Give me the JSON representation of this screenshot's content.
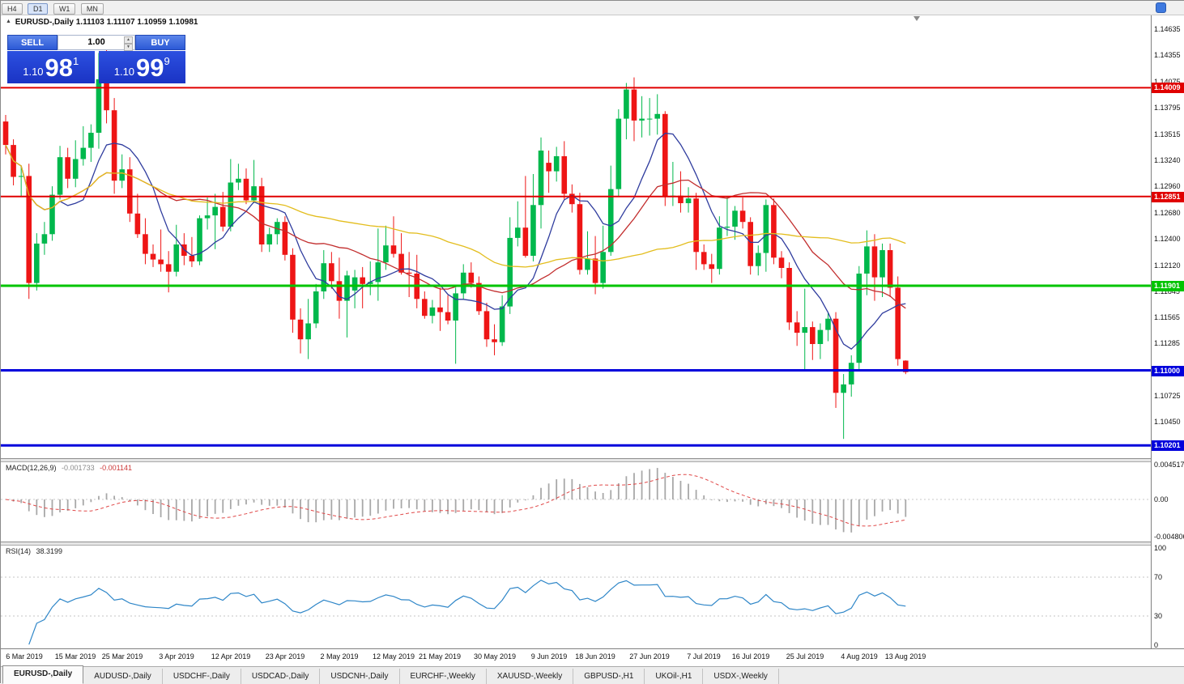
{
  "toolbar": {
    "timeframes": [
      "H4",
      "D1",
      "W1",
      "MN"
    ],
    "active": "D1"
  },
  "chart": {
    "symbol_period": "EURUSD-,Daily",
    "ohlc": "1.11103 1.11107 1.10959 1.10981",
    "collapse_icon": "▲"
  },
  "trade_panel": {
    "sell_label": "SELL",
    "buy_label": "BUY",
    "volume": "1.00",
    "bid": {
      "prefix": "1.10",
      "big": "98",
      "sup": "1"
    },
    "ask": {
      "prefix": "1.10",
      "big": "99",
      "sup": "9"
    }
  },
  "price_axis": {
    "labels": [
      "1.14635",
      "1.14355",
      "1.14075",
      "1.13795",
      "1.13515",
      "1.13240",
      "1.12960",
      "1.12680",
      "1.12400",
      "1.12120",
      "1.11845",
      "1.11565",
      "1.11285",
      "1.10725",
      "1.10450"
    ]
  },
  "levels": [
    {
      "price": 1.14009,
      "label": "1.14009",
      "color": "#e00000",
      "width": 2
    },
    {
      "price": 1.12851,
      "label": "1.12851",
      "color": "#e00000",
      "width": 2
    },
    {
      "price": 1.11901,
      "label": "1.11901",
      "color": "#00c400",
      "width": 3
    },
    {
      "price": 1.11,
      "label": "1.11000",
      "color": "#0000dc",
      "width": 3
    },
    {
      "price": 1.10201,
      "label": "1.10201",
      "color": "#0000dc",
      "width": 3
    }
  ],
  "macd": {
    "name": "MACD(12,26,9)",
    "value_main": "-0.001733",
    "value_signal": "-0.001141",
    "axis": [
      {
        "text": "0.004517",
        "value": 0.004517
      },
      {
        "text": "0.00",
        "value": 0
      },
      {
        "text": "-0.004806",
        "value": -0.004806
      }
    ]
  },
  "rsi": {
    "name": "RSI(14)",
    "value": "38.3199",
    "axis": [
      {
        "text": "100",
        "value": 100
      },
      {
        "text": "70",
        "value": 70
      },
      {
        "text": "30",
        "value": 30
      },
      {
        "text": "0",
        "value": 0
      }
    ],
    "levels": [
      70,
      30
    ]
  },
  "x_axis": {
    "labels": [
      {
        "text": "6 Mar 2019",
        "i": 2
      },
      {
        "text": "15 Mar 2019",
        "i": 9
      },
      {
        "text": "25 Mar 2019",
        "i": 15
      },
      {
        "text": "3 Apr 2019",
        "i": 22
      },
      {
        "text": "12 Apr 2019",
        "i": 29
      },
      {
        "text": "23 Apr 2019",
        "i": 36
      },
      {
        "text": "2 May 2019",
        "i": 43
      },
      {
        "text": "12 May 2019",
        "i": 50
      },
      {
        "text": "21 May 2019",
        "i": 56
      },
      {
        "text": "30 May 2019",
        "i": 63
      },
      {
        "text": "9 Jun 2019",
        "i": 70
      },
      {
        "text": "18 Jun 2019",
        "i": 76
      },
      {
        "text": "27 Jun 2019",
        "i": 83
      },
      {
        "text": "7 Jul 2019",
        "i": 90
      },
      {
        "text": "16 Jul 2019",
        "i": 96
      },
      {
        "text": "25 Jul 2019",
        "i": 103
      },
      {
        "text": "4 Aug 2019",
        "i": 110
      },
      {
        "text": "13 Aug 2019",
        "i": 116
      }
    ]
  },
  "tabs": [
    {
      "label": "EURUSD-,Daily",
      "active": true
    },
    {
      "label": "AUDUSD-,Daily",
      "active": false
    },
    {
      "label": "USDCHF-,Daily",
      "active": false
    },
    {
      "label": "USDCAD-,Daily",
      "active": false
    },
    {
      "label": "USDCNH-,Daily",
      "active": false
    },
    {
      "label": "EURCHF-,Weekly",
      "active": false
    },
    {
      "label": "XAUUSD-,Weekly",
      "active": false
    },
    {
      "label": "GBPUSD-,H1",
      "active": false
    },
    {
      "label": "UKOil-,H1",
      "active": false
    },
    {
      "label": "USDX-,Weekly",
      "active": false
    }
  ],
  "chart_data": {
    "type": "candlestick",
    "symbol": "EURUSD-",
    "timeframe": "Daily",
    "colors": {
      "up": "#00b84c",
      "down": "#ee1515",
      "ma_fast": "#2f3c9e",
      "ma_mid": "#c22e2e",
      "ma_slow": "#e3bd1d",
      "rsi": "#2e86c8",
      "macd_hist": "#a8a8a8",
      "macd_signal": "#e04848"
    },
    "moving_averages": [
      {
        "period": 8,
        "color_key": "ma_fast"
      },
      {
        "period": 20,
        "color_key": "ma_mid"
      },
      {
        "period": 50,
        "color_key": "ma_slow"
      }
    ],
    "candles": [
      [
        1.1365,
        1.1372,
        1.133,
        1.134
      ],
      [
        1.134,
        1.1346,
        1.1297,
        1.1306
      ],
      [
        1.1306,
        1.1317,
        1.1285,
        1.1307
      ],
      [
        1.1307,
        1.132,
        1.1176,
        1.1193
      ],
      [
        1.1193,
        1.1246,
        1.1185,
        1.1235
      ],
      [
        1.1235,
        1.1258,
        1.1223,
        1.1245
      ],
      [
        1.1245,
        1.1296,
        1.1238,
        1.1287
      ],
      [
        1.1287,
        1.1339,
        1.1282,
        1.1327
      ],
      [
        1.1327,
        1.1337,
        1.1294,
        1.1304
      ],
      [
        1.1304,
        1.1345,
        1.1295,
        1.1325
      ],
      [
        1.1325,
        1.136,
        1.1318,
        1.1337
      ],
      [
        1.1337,
        1.1362,
        1.1322,
        1.1353
      ],
      [
        1.1353,
        1.1438,
        1.1336,
        1.141
      ],
      [
        1.141,
        1.1442,
        1.1363,
        1.1377
      ],
      [
        1.1377,
        1.139,
        1.1288,
        1.1302
      ],
      [
        1.1302,
        1.133,
        1.1294,
        1.1314
      ],
      [
        1.1314,
        1.1327,
        1.1258,
        1.1267
      ],
      [
        1.1267,
        1.1288,
        1.1241,
        1.1245
      ],
      [
        1.1245,
        1.1262,
        1.1213,
        1.1224
      ],
      [
        1.1224,
        1.1234,
        1.121,
        1.1218
      ],
      [
        1.1218,
        1.125,
        1.1205,
        1.1213
      ],
      [
        1.1213,
        1.1227,
        1.1183,
        1.1205
      ],
      [
        1.1205,
        1.1255,
        1.12,
        1.1234
      ],
      [
        1.1234,
        1.1246,
        1.1212,
        1.1222
      ],
      [
        1.1222,
        1.1242,
        1.121,
        1.1216
      ],
      [
        1.1216,
        1.1265,
        1.1212,
        1.1262
      ],
      [
        1.1262,
        1.1284,
        1.125,
        1.1265
      ],
      [
        1.1265,
        1.1288,
        1.1229,
        1.1274
      ],
      [
        1.1274,
        1.129,
        1.1248,
        1.1253
      ],
      [
        1.1253,
        1.1325,
        1.1248,
        1.13
      ],
      [
        1.13,
        1.132,
        1.1292,
        1.1304
      ],
      [
        1.1304,
        1.1315,
        1.1277,
        1.1281
      ],
      [
        1.1281,
        1.1324,
        1.1278,
        1.1296
      ],
      [
        1.1296,
        1.1305,
        1.1226,
        1.1234
      ],
      [
        1.1234,
        1.1252,
        1.1226,
        1.1245
      ],
      [
        1.1245,
        1.1262,
        1.1234,
        1.1258
      ],
      [
        1.1258,
        1.1264,
        1.1217,
        1.1223
      ],
      [
        1.1223,
        1.123,
        1.114,
        1.1154
      ],
      [
        1.1154,
        1.1166,
        1.1118,
        1.1133
      ],
      [
        1.1133,
        1.1176,
        1.1112,
        1.115
      ],
      [
        1.115,
        1.1192,
        1.1145,
        1.1184
      ],
      [
        1.1184,
        1.1228,
        1.1176,
        1.1214
      ],
      [
        1.1214,
        1.1226,
        1.1187,
        1.1195
      ],
      [
        1.1195,
        1.122,
        1.1155,
        1.1174
      ],
      [
        1.1174,
        1.1206,
        1.1135,
        1.1201
      ],
      [
        1.1185,
        1.1207,
        1.1166,
        1.1199
      ],
      [
        1.1199,
        1.121,
        1.1166,
        1.1192
      ],
      [
        1.1192,
        1.1216,
        1.118,
        1.1194
      ],
      [
        1.1194,
        1.1251,
        1.1174,
        1.1215
      ],
      [
        1.1215,
        1.1254,
        1.1207,
        1.1233
      ],
      [
        1.1233,
        1.1264,
        1.122,
        1.1224
      ],
      [
        1.1224,
        1.1246,
        1.1202,
        1.1204
      ],
      [
        1.1204,
        1.1226,
        1.1178,
        1.1203
      ],
      [
        1.1203,
        1.1223,
        1.1166,
        1.1176
      ],
      [
        1.1176,
        1.1184,
        1.1155,
        1.1158
      ],
      [
        1.1158,
        1.1175,
        1.115,
        1.1167
      ],
      [
        1.1167,
        1.1188,
        1.1142,
        1.1162
      ],
      [
        1.1162,
        1.118,
        1.1149,
        1.1153
      ],
      [
        1.1153,
        1.1188,
        1.1107,
        1.1182
      ],
      [
        1.1182,
        1.1213,
        1.1175,
        1.1204
      ],
      [
        1.1204,
        1.1215,
        1.1188,
        1.1193
      ],
      [
        1.1193,
        1.12,
        1.1159,
        1.1163
      ],
      [
        1.1163,
        1.1172,
        1.1125,
        1.1133
      ],
      [
        1.1133,
        1.1149,
        1.1116,
        1.113
      ],
      [
        1.113,
        1.118,
        1.1126,
        1.1168
      ],
      [
        1.1168,
        1.1263,
        1.116,
        1.1241
      ],
      [
        1.1241,
        1.128,
        1.1232,
        1.1252
      ],
      [
        1.1252,
        1.1307,
        1.122,
        1.1222
      ],
      [
        1.1222,
        1.1309,
        1.1216,
        1.1276
      ],
      [
        1.1276,
        1.1348,
        1.1251,
        1.1334
      ],
      [
        1.1321,
        1.1334,
        1.1289,
        1.1312
      ],
      [
        1.1312,
        1.1338,
        1.1301,
        1.1328
      ],
      [
        1.1328,
        1.1344,
        1.1282,
        1.1288
      ],
      [
        1.1288,
        1.1298,
        1.1268,
        1.1277
      ],
      [
        1.1277,
        1.1289,
        1.1202,
        1.1207
      ],
      [
        1.1207,
        1.1248,
        1.1202,
        1.1219
      ],
      [
        1.1219,
        1.1243,
        1.1181,
        1.1193
      ],
      [
        1.1193,
        1.1254,
        1.1187,
        1.1226
      ],
      [
        1.1226,
        1.1318,
        1.1222,
        1.1293
      ],
      [
        1.1293,
        1.1378,
        1.1285,
        1.1368
      ],
      [
        1.1368,
        1.1406,
        1.1346,
        1.1399
      ],
      [
        1.1399,
        1.1412,
        1.1344,
        1.1366
      ],
      [
        1.1366,
        1.1392,
        1.1348,
        1.1368
      ],
      [
        1.1368,
        1.139,
        1.135,
        1.1368
      ],
      [
        1.1368,
        1.1394,
        1.1351,
        1.1373
      ],
      [
        1.1373,
        1.1376,
        1.1275,
        1.1285
      ],
      [
        1.1285,
        1.1322,
        1.1275,
        1.1286
      ],
      [
        1.1286,
        1.1312,
        1.1268,
        1.1278
      ],
      [
        1.1278,
        1.1295,
        1.1268,
        1.1283
      ],
      [
        1.1283,
        1.1289,
        1.1207,
        1.1226
      ],
      [
        1.1226,
        1.1234,
        1.1207,
        1.1213
      ],
      [
        1.1213,
        1.1224,
        1.1193,
        1.1208
      ],
      [
        1.1208,
        1.1264,
        1.1202,
        1.1252
      ],
      [
        1.1252,
        1.1285,
        1.1243,
        1.1253
      ],
      [
        1.1253,
        1.1275,
        1.1239,
        1.127
      ],
      [
        1.127,
        1.1284,
        1.1251,
        1.1258
      ],
      [
        1.1258,
        1.1263,
        1.1202,
        1.1211
      ],
      [
        1.1211,
        1.1233,
        1.1201,
        1.1225
      ],
      [
        1.1225,
        1.1282,
        1.1205,
        1.1276
      ],
      [
        1.1276,
        1.1283,
        1.1213,
        1.122
      ],
      [
        1.122,
        1.1227,
        1.1198,
        1.1209
      ],
      [
        1.1209,
        1.1215,
        1.1143,
        1.1151
      ],
      [
        1.1151,
        1.1163,
        1.1126,
        1.114
      ],
      [
        1.114,
        1.1187,
        1.1101,
        1.1146
      ],
      [
        1.1146,
        1.1152,
        1.1111,
        1.1128
      ],
      [
        1.1128,
        1.115,
        1.1112,
        1.1143
      ],
      [
        1.1143,
        1.1162,
        1.1131,
        1.1155
      ],
      [
        1.1155,
        1.1162,
        1.106,
        1.1076
      ],
      [
        1.1076,
        1.1096,
        1.1027,
        1.1085
      ],
      [
        1.1085,
        1.1116,
        1.1072,
        1.1108
      ],
      [
        1.1108,
        1.1211,
        1.1101,
        1.1203
      ],
      [
        1.1203,
        1.1249,
        1.118,
        1.1232
      ],
      [
        1.1232,
        1.1245,
        1.1174,
        1.1199
      ],
      [
        1.1199,
        1.1235,
        1.1178,
        1.1228
      ],
      [
        1.1228,
        1.1235,
        1.1178,
        1.1188
      ],
      [
        1.1188,
        1.12,
        1.1105,
        1.1112
      ],
      [
        1.11103,
        1.11107,
        1.10959,
        1.10981
      ]
    ]
  }
}
